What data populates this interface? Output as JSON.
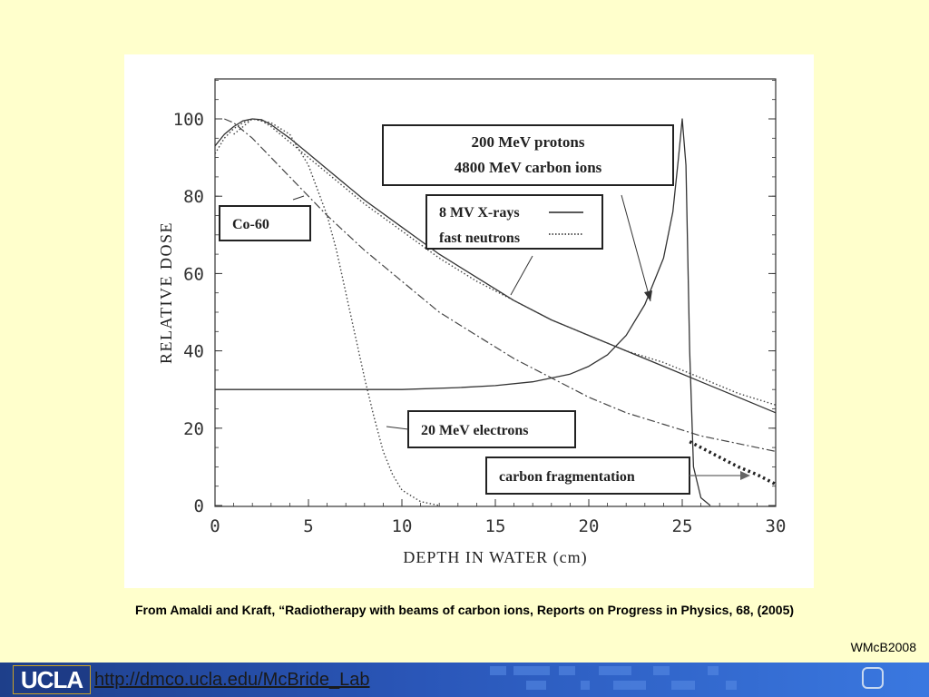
{
  "chart_data": {
    "type": "line",
    "xlabel": "DEPTH IN WATER (cm)",
    "ylabel": "RELATIVE DOSE",
    "xlim": [
      0,
      30
    ],
    "ylim": [
      0,
      100
    ],
    "x_ticks": [
      0,
      5,
      10,
      15,
      20,
      25,
      30
    ],
    "y_ticks": [
      0,
      20,
      40,
      60,
      80,
      100
    ],
    "grid": false,
    "annotations": [
      {
        "lines": [
          "200 MeV protons",
          "4800 MeV carbon ions"
        ]
      },
      {
        "lines": [
          "8 MV X-rays",
          "fast neutrons"
        ]
      },
      {
        "lines": [
          "Co-60"
        ]
      },
      {
        "lines": [
          "20 MeV electrons"
        ]
      },
      {
        "lines": [
          "carbon fragmentation"
        ]
      }
    ],
    "series": [
      {
        "name": "8 MV X-rays",
        "style": "solid",
        "x": [
          0,
          0.5,
          1,
          1.5,
          2,
          2.5,
          3,
          4,
          5,
          6,
          8,
          10,
          12,
          14,
          16,
          18,
          20,
          22,
          24,
          26,
          28,
          30
        ],
        "y": [
          93,
          96,
          98,
          99.5,
          100,
          99.8,
          98.5,
          95,
          91,
          87,
          79,
          72,
          65,
          59,
          53,
          48,
          44,
          40,
          36,
          32,
          28,
          24
        ]
      },
      {
        "name": "fast neutrons",
        "style": "dotted",
        "x": [
          0,
          0.5,
          1,
          1.5,
          2,
          2.5,
          3,
          4,
          5,
          6,
          8,
          10,
          12,
          14,
          16,
          18,
          20,
          22,
          24,
          26,
          28,
          30
        ],
        "y": [
          91,
          95,
          97.5,
          99,
          100,
          99.5,
          98,
          94,
          90,
          86,
          78,
          71,
          64,
          58,
          53,
          48,
          44,
          40,
          37,
          33,
          29,
          26
        ]
      },
      {
        "name": "Co-60",
        "style": "dash-dot",
        "x": [
          0.5,
          1,
          2,
          3,
          4,
          5,
          6,
          8,
          10,
          12,
          14,
          16,
          18,
          20,
          22,
          24,
          26,
          28,
          30
        ],
        "y": [
          100,
          99,
          95,
          90,
          85,
          80,
          75,
          66,
          58,
          50,
          44,
          38,
          33,
          28,
          24,
          21,
          18,
          16,
          14
        ]
      },
      {
        "name": "20 MeV electrons",
        "style": "dotted",
        "x": [
          1,
          2,
          3,
          4,
          5,
          6,
          6.5,
          7,
          7.5,
          8,
          8.5,
          9,
          9.5,
          10,
          11,
          12
        ],
        "y": [
          96,
          100,
          99,
          96,
          88,
          75,
          66,
          55,
          44,
          33,
          23,
          14,
          8,
          4,
          1,
          0
        ]
      },
      {
        "name": "200 MeV protons / 4800 MeV carbon ions",
        "style": "solid",
        "x": [
          0,
          5,
          10,
          13,
          15,
          17,
          19,
          20,
          21,
          22,
          23,
          24,
          24.5,
          24.8,
          25,
          25.2,
          25.4,
          25.6,
          26,
          26.5
        ],
        "y": [
          30,
          30,
          30,
          30.5,
          31,
          32,
          34,
          36,
          39,
          44,
          52,
          64,
          76,
          90,
          100,
          88,
          40,
          10,
          2,
          0
        ]
      },
      {
        "name": "carbon fragmentation",
        "style": "heavy-dotted",
        "x": [
          25.4,
          26,
          27,
          28,
          29,
          30
        ],
        "y": [
          16.5,
          15,
          12.5,
          10,
          8,
          5.5
        ]
      }
    ]
  },
  "caption": "From Amaldi and Kraft, “Radiotherapy with beams of carbon ions, Reports on Progress in Physics, 68, (2005)",
  "credit": "WMcB2008",
  "footer": {
    "logo_text": "UCLA",
    "url": "http://dmco.ucla.edu/McBride_Lab"
  },
  "colors": {
    "background": "#ffffcc",
    "footer": "#2a56b8",
    "ink": "#333333"
  }
}
